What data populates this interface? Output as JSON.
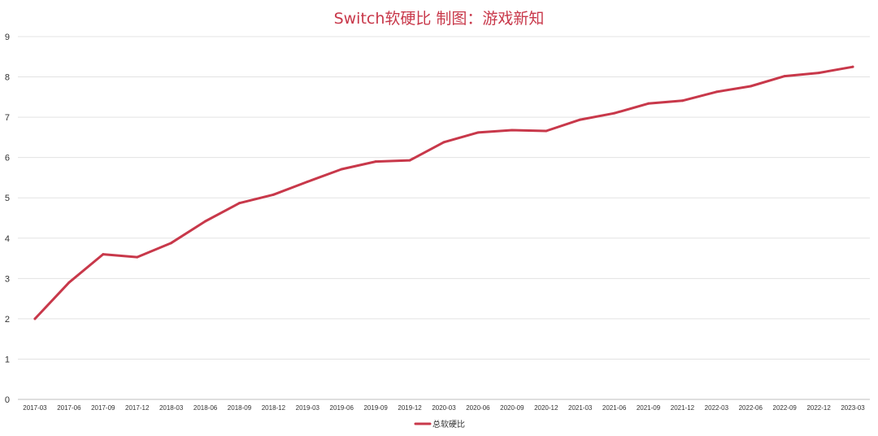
{
  "chart_data": {
    "type": "line",
    "title": "Switch软硬比 制图：游戏新知",
    "xlabel": "",
    "ylabel": "",
    "ylim": [
      0,
      9
    ],
    "yticks": [
      "0",
      "1",
      "2",
      "3",
      "4",
      "5",
      "6",
      "7",
      "8",
      "9"
    ],
    "grid": true,
    "legend_position": "bottom",
    "line_color": "#c8384a",
    "categories": [
      "2017-03",
      "2017-06",
      "2017-09",
      "2017-12",
      "2018-03",
      "2018-06",
      "2018-09",
      "2018-12",
      "2019-03",
      "2019-06",
      "2019-09",
      "2019-12",
      "2020-03",
      "2020-06",
      "2020-09",
      "2020-12",
      "2021-03",
      "2021-06",
      "2021-09",
      "2021-12",
      "2022-03",
      "2022-06",
      "2022-09",
      "2022-12",
      "2023-03"
    ],
    "series": [
      {
        "name": "总软硬比",
        "values": [
          2.0,
          2.9,
          3.6,
          3.53,
          3.88,
          4.42,
          4.87,
          5.08,
          5.4,
          5.71,
          5.9,
          5.93,
          6.38,
          6.62,
          6.68,
          6.66,
          6.94,
          7.1,
          7.34,
          7.41,
          7.63,
          7.77,
          8.02,
          8.1,
          8.25
        ]
      }
    ]
  }
}
